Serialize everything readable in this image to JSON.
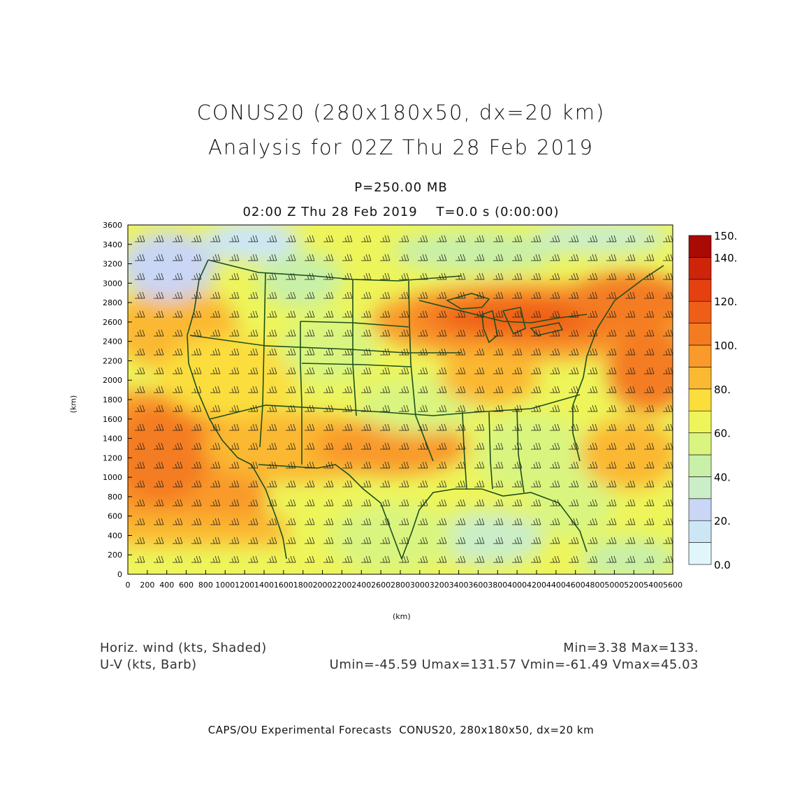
{
  "header": {
    "title_line1": "CONUS20 (280x180x50, dx=20 km)",
    "title_line2": "Analysis for 02Z Thu 28 Feb 2019",
    "pressure_level": "P=250.00 MB",
    "valid_time": "02:00 Z Thu 28 Feb 2019    T=0.0 s (0:00:00)"
  },
  "map": {
    "x_axis_label": "(km)",
    "y_axis_label": "(km)",
    "x_ticks": [
      "0",
      "200",
      "400",
      "600",
      "800",
      "1000",
      "1200",
      "1400",
      "1600",
      "1800",
      "2000",
      "2200",
      "2400",
      "2600",
      "2800",
      "3000",
      "3200",
      "3400",
      "3600",
      "3800",
      "4000",
      "4200",
      "4400",
      "4600",
      "4800",
      "5000",
      "5200",
      "5400",
      "5600"
    ],
    "y_ticks": [
      "0",
      "200",
      "400",
      "600",
      "800",
      "1000",
      "1200",
      "1400",
      "1600",
      "1800",
      "2000",
      "2200",
      "2400",
      "2600",
      "2800",
      "3000",
      "3200",
      "3400",
      "3600"
    ],
    "x_range_km": [
      0,
      5600
    ],
    "y_range_km": [
      0,
      3600
    ],
    "field": "horizontal wind speed (kts) shaded with wind barbs"
  },
  "colorbar": {
    "labels": [
      "150.",
      "140.",
      "120.",
      "100.",
      "80.",
      "60.",
      "40.",
      "20.",
      "0.0"
    ],
    "levels": [
      0,
      10,
      20,
      30,
      40,
      50,
      60,
      70,
      80,
      90,
      100,
      110,
      120,
      130,
      140,
      150
    ],
    "colors": [
      "#e0f6fb",
      "#cce6f6",
      "#c9d6f5",
      "#cbeec8",
      "#c8f0a8",
      "#d9f580",
      "#eef55a",
      "#fbde3c",
      "#fbb832",
      "#f99a2a",
      "#f47c20",
      "#ef5e18",
      "#e54010",
      "#cd240a",
      "#aa0a04"
    ]
  },
  "legend": {
    "shaded_label": "Horiz. wind (kts, Shaded)",
    "barb_label": "U-V (kts, Barb)",
    "minmax": "Min=3.38 Max=133.",
    "uv_range": "Umin=-45.59 Umax=131.57 Vmin=-61.49 Vmax=45.03"
  },
  "footer": {
    "text": "CAPS/OU Experimental Forecasts  CONUS20, 280x180x50, dx=20 km"
  }
}
